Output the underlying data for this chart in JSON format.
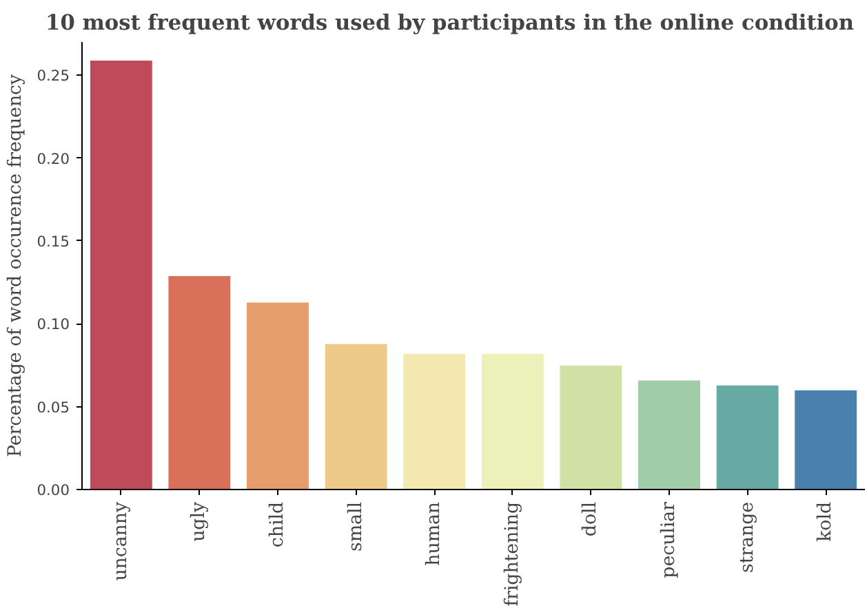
{
  "chart_data": {
    "type": "bar",
    "title": "10 most frequent words used by participants in the online condition",
    "ylabel": "Percentage of word occurence frequency",
    "categories": [
      "uncanny",
      "ugly",
      "child",
      "small",
      "human",
      "frightening",
      "doll",
      "peculiar",
      "strange",
      "kold"
    ],
    "values": [
      0.259,
      0.129,
      0.113,
      0.088,
      0.082,
      0.082,
      0.075,
      0.066,
      0.063,
      0.06
    ],
    "colors": [
      "#be4a5a",
      "#da6f5a",
      "#e79d6c",
      "#edc98a",
      "#f4e8b1",
      "#ebf1b9",
      "#cfe1a4",
      "#a1cca8",
      "#67aaa3",
      "#4a80ae"
    ],
    "ylim": [
      0,
      0.27
    ],
    "yticks": [
      {
        "value": 0,
        "label": "0.00"
      },
      {
        "value": 0.05,
        "label": "0.05"
      },
      {
        "value": 0.1,
        "label": "0.10"
      },
      {
        "value": 0.15,
        "label": "0.15"
      },
      {
        "value": 0.2,
        "label": "0.20"
      },
      {
        "value": 0.25,
        "label": "0.25"
      }
    ],
    "grid": false
  }
}
